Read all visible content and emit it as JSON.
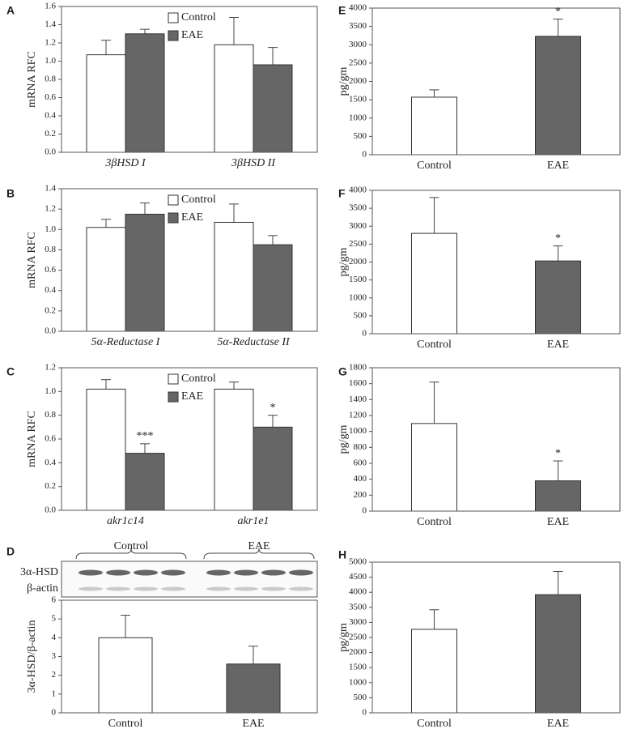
{
  "chart_data": [
    {
      "type": "bar",
      "panel": "A",
      "ylabel": "mRNA RFC",
      "categories": [
        "3βHSD I",
        "3βHSD II"
      ],
      "category_style": "italic",
      "series": [
        {
          "name": "Control",
          "color": "#ffffff",
          "values": [
            1.07,
            1.18
          ],
          "errors": [
            0.16,
            0.3
          ]
        },
        {
          "name": "EAE",
          "color": "#666666",
          "values": [
            1.3,
            0.96
          ],
          "errors": [
            0.05,
            0.19
          ]
        }
      ],
      "ylim": [
        0,
        1.6
      ],
      "yticks": [
        {
          "value": 0,
          "label": "0.0"
        },
        0.2,
        0.4,
        0.6,
        0.8,
        {
          "value": 1,
          "label": "1.0"
        },
        1.2,
        1.4,
        1.6
      ],
      "legend": "upper center"
    },
    {
      "type": "bar",
      "panel": "B",
      "ylabel": "mRNA RFC",
      "categories": [
        "5α-Reductase I",
        "5α-Reductase II"
      ],
      "category_style": "italic",
      "series": [
        {
          "name": "Control",
          "color": "#ffffff",
          "values": [
            1.02,
            1.07
          ],
          "errors": [
            0.08,
            0.18
          ]
        },
        {
          "name": "EAE",
          "color": "#666666",
          "values": [
            1.15,
            0.85
          ],
          "errors": [
            0.11,
            0.09
          ]
        }
      ],
      "ylim": [
        0,
        1.4
      ],
      "yticks": [
        {
          "value": 0,
          "label": "0.0"
        },
        0.2,
        0.4,
        0.6,
        0.8,
        {
          "value": 1,
          "label": "1.0"
        },
        1.2,
        1.4
      ],
      "legend": "upper center"
    },
    {
      "type": "bar",
      "panel": "C",
      "ylabel": "mRNA RFC",
      "categories": [
        "akr1c14",
        "akr1e1"
      ],
      "category_style": "italic",
      "series": [
        {
          "name": "Control",
          "color": "#ffffff",
          "values": [
            1.02,
            1.02
          ],
          "errors": [
            0.08,
            0.06
          ]
        },
        {
          "name": "EAE",
          "color": "#666666",
          "values": [
            0.48,
            0.7
          ],
          "errors": [
            0.08,
            0.1
          ],
          "annotations": [
            "***",
            "*"
          ]
        }
      ],
      "ylim": [
        0,
        1.2
      ],
      "yticks": [
        {
          "value": 0,
          "label": "0.0"
        },
        0.2,
        0.4,
        0.6,
        0.8,
        {
          "value": 1,
          "label": "1.0"
        },
        1.2
      ],
      "legend": "upper center"
    },
    {
      "type": "bar",
      "panel": "D",
      "ylabel": "3α-HSD/β-actin",
      "categories": [
        "Control",
        "EAE"
      ],
      "values": [
        4.0,
        2.6
      ],
      "errors": [
        1.2,
        0.95
      ],
      "colors": [
        "#ffffff",
        "#666666"
      ],
      "ylim": [
        0,
        6
      ],
      "yticks": [
        0,
        1,
        2,
        3,
        4,
        5,
        6
      ],
      "blot": {
        "groups": [
          "Control",
          "EAE"
        ],
        "rows": [
          "3α-HSD",
          "β-actin"
        ]
      }
    },
    {
      "type": "bar",
      "panel": "E",
      "ylabel": "pg/gm",
      "categories": [
        "Control",
        "EAE"
      ],
      "values": [
        1570,
        3230
      ],
      "errors": [
        200,
        470
      ],
      "colors": [
        "#ffffff",
        "#666666"
      ],
      "annotations": [
        null,
        "*"
      ],
      "ylim": [
        0,
        4000
      ],
      "yticks": [
        0,
        500,
        1000,
        1500,
        2000,
        2500,
        3000,
        3500,
        4000
      ]
    },
    {
      "type": "bar",
      "panel": "F",
      "ylabel": "pg/gm",
      "categories": [
        "Control",
        "EAE"
      ],
      "values": [
        2800,
        2030
      ],
      "errors": [
        1000,
        420
      ],
      "colors": [
        "#ffffff",
        "#666666"
      ],
      "annotations": [
        null,
        "*"
      ],
      "ylim": [
        0,
        4000
      ],
      "yticks": [
        0,
        500,
        1000,
        1500,
        2000,
        2500,
        3000,
        3500,
        4000
      ]
    },
    {
      "type": "bar",
      "panel": "G",
      "ylabel": "pg/gm",
      "categories": [
        "Control",
        "EAE"
      ],
      "values": [
        1100,
        380
      ],
      "errors": [
        520,
        250
      ],
      "colors": [
        "#ffffff",
        "#666666"
      ],
      "annotations": [
        null,
        "*"
      ],
      "ylim": [
        0,
        1800
      ],
      "yticks": [
        0,
        200,
        400,
        600,
        800,
        1000,
        1200,
        1400,
        1600,
        1800
      ]
    },
    {
      "type": "bar",
      "panel": "H",
      "ylabel": "pg/gm",
      "categories": [
        "Control",
        "EAE"
      ],
      "values": [
        2770,
        3920
      ],
      "errors": [
        650,
        770
      ],
      "colors": [
        "#ffffff",
        "#666666"
      ],
      "ylim": [
        0,
        5000
      ],
      "yticks": [
        0,
        500,
        1000,
        1500,
        2000,
        2500,
        3000,
        3500,
        4000,
        4500,
        5000
      ]
    }
  ]
}
